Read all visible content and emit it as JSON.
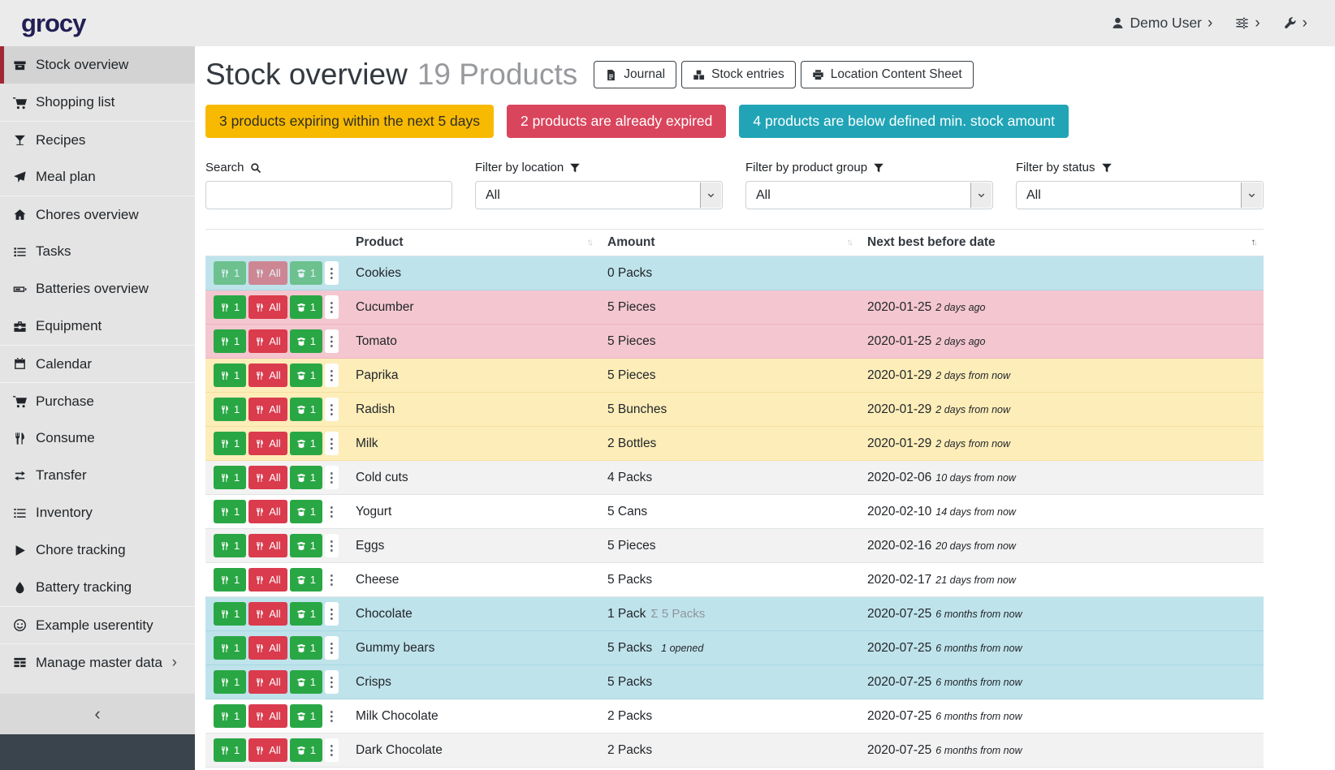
{
  "app": {
    "logo": "grocy"
  },
  "topbar": {
    "user_label": "Demo User"
  },
  "colors": {
    "success": "#2aa745",
    "danger": "#da3b4d",
    "alert_warning": "#f8ba00",
    "alert_danger": "#d9455c",
    "alert_info": "#20a4b6",
    "row_info": "#bfe3eb",
    "row_danger": "#f4c7d0",
    "row_warning": "#fdedb9",
    "active_nav_accent": "#a12734",
    "logo": "#221f54"
  },
  "sidebar": {
    "collapse_icon": "‹",
    "items": [
      {
        "label": "Stock overview",
        "icon": "box",
        "active": true
      },
      {
        "label": "Shopping list",
        "icon": "cart"
      },
      {
        "label": "Recipes",
        "icon": "cocktail",
        "group_start": true
      },
      {
        "label": "Meal plan",
        "icon": "paper-plane"
      },
      {
        "label": "Chores overview",
        "icon": "home",
        "group_start": true
      },
      {
        "label": "Tasks",
        "icon": "tasks"
      },
      {
        "label": "Batteries overview",
        "icon": "battery"
      },
      {
        "label": "Equipment",
        "icon": "toolbox"
      },
      {
        "label": "Calendar",
        "icon": "calendar",
        "group_start": true
      },
      {
        "label": "Purchase",
        "icon": "cart",
        "group_start": true
      },
      {
        "label": "Consume",
        "icon": "utensils"
      },
      {
        "label": "Transfer",
        "icon": "exchange"
      },
      {
        "label": "Inventory",
        "icon": "list"
      },
      {
        "label": "Chore tracking",
        "icon": "play"
      },
      {
        "label": "Battery tracking",
        "icon": "droplet"
      },
      {
        "label": "Example userentity",
        "icon": "smile",
        "group_start": true
      },
      {
        "label": "Manage master data",
        "icon": "table",
        "group_start": true,
        "has_chevron": true
      }
    ]
  },
  "header": {
    "title": "Stock overview",
    "subtitle": "19 Products",
    "buttons": [
      {
        "label": "Journal",
        "icon": "file"
      },
      {
        "label": "Stock entries",
        "icon": "boxes"
      },
      {
        "label": "Location Content Sheet",
        "icon": "print"
      }
    ]
  },
  "alerts": [
    {
      "type": "warning",
      "text": "3 products expiring within the next 5 days"
    },
    {
      "type": "danger",
      "text": "2 products are already expired"
    },
    {
      "type": "info",
      "text": "4 products are below defined min. stock amount"
    }
  ],
  "filters": {
    "search_label": "Search",
    "search_value": "",
    "location_label": "Filter by location",
    "location_value": "All",
    "product_group_label": "Filter by product group",
    "product_group_value": "All",
    "status_label": "Filter by status",
    "status_value": "All"
  },
  "table": {
    "columns": [
      {
        "label": "Product",
        "sort": "none"
      },
      {
        "label": "Amount",
        "sort": "none"
      },
      {
        "label": "Next best before date",
        "sort": "asc"
      }
    ],
    "row_buttons": {
      "consume_one": "1",
      "consume_all": "All",
      "open_one": "1"
    },
    "rows": [
      {
        "product": "Cookies",
        "amount": "0 Packs",
        "amount_sum": "",
        "amount_opened": "",
        "date": "",
        "date_relative": "",
        "highlight": "info",
        "muted_buttons": true
      },
      {
        "product": "Cucumber",
        "amount": "5 Pieces",
        "amount_sum": "",
        "amount_opened": "",
        "date": "2020-01-25",
        "date_relative": "2 days ago",
        "highlight": "danger"
      },
      {
        "product": "Tomato",
        "amount": "5 Pieces",
        "amount_sum": "",
        "amount_opened": "",
        "date": "2020-01-25",
        "date_relative": "2 days ago",
        "highlight": "danger"
      },
      {
        "product": "Paprika",
        "amount": "5 Pieces",
        "amount_sum": "",
        "amount_opened": "",
        "date": "2020-01-29",
        "date_relative": "2 days from now",
        "highlight": "warning"
      },
      {
        "product": "Radish",
        "amount": "5 Bunches",
        "amount_sum": "",
        "amount_opened": "",
        "date": "2020-01-29",
        "date_relative": "2 days from now",
        "highlight": "warning"
      },
      {
        "product": "Milk",
        "amount": "2 Bottles",
        "amount_sum": "",
        "amount_opened": "",
        "date": "2020-01-29",
        "date_relative": "2 days from now",
        "highlight": "warning"
      },
      {
        "product": "Cold cuts",
        "amount": "4 Packs",
        "amount_sum": "",
        "amount_opened": "",
        "date": "2020-02-06",
        "date_relative": "10 days from now",
        "highlight": ""
      },
      {
        "product": "Yogurt",
        "amount": "5 Cans",
        "amount_sum": "",
        "amount_opened": "",
        "date": "2020-02-10",
        "date_relative": "14 days from now",
        "highlight": ""
      },
      {
        "product": "Eggs",
        "amount": "5 Pieces",
        "amount_sum": "",
        "amount_opened": "",
        "date": "2020-02-16",
        "date_relative": "20 days from now",
        "highlight": ""
      },
      {
        "product": "Cheese",
        "amount": "5 Packs",
        "amount_sum": "",
        "amount_opened": "",
        "date": "2020-02-17",
        "date_relative": "21 days from now",
        "highlight": ""
      },
      {
        "product": "Chocolate",
        "amount": "1 Pack",
        "amount_sum": "Σ 5 Packs",
        "amount_opened": "",
        "date": "2020-07-25",
        "date_relative": "6 months from now",
        "highlight": "info"
      },
      {
        "product": "Gummy bears",
        "amount": "5 Packs",
        "amount_sum": "",
        "amount_opened": "1 opened",
        "date": "2020-07-25",
        "date_relative": "6 months from now",
        "highlight": "info"
      },
      {
        "product": "Crisps",
        "amount": "5 Packs",
        "amount_sum": "",
        "amount_opened": "",
        "date": "2020-07-25",
        "date_relative": "6 months from now",
        "highlight": "info"
      },
      {
        "product": "Milk Chocolate",
        "amount": "2 Packs",
        "amount_sum": "",
        "amount_opened": "",
        "date": "2020-07-25",
        "date_relative": "6 months from now",
        "highlight": ""
      },
      {
        "product": "Dark Chocolate",
        "amount": "2 Packs",
        "amount_sum": "",
        "amount_opened": "",
        "date": "2020-07-25",
        "date_relative": "6 months from now",
        "highlight": ""
      },
      {
        "product": "",
        "amount": "",
        "amount_sum": "",
        "amount_opened": "",
        "date": "",
        "date_relative": "",
        "highlight": "",
        "partial": true
      }
    ]
  }
}
